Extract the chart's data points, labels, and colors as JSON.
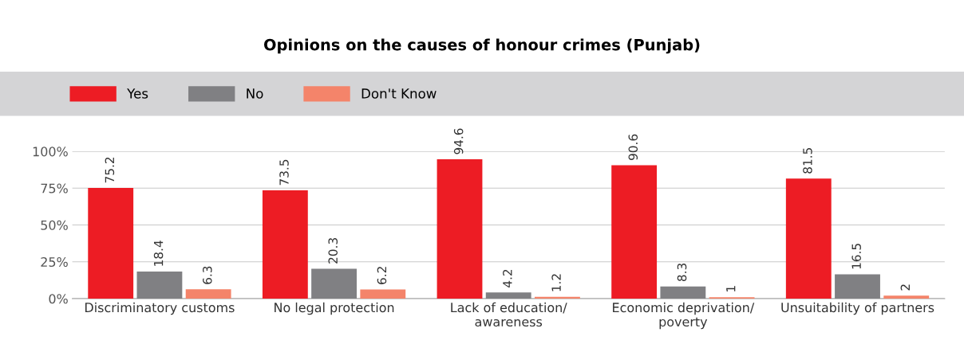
{
  "chart_data": {
    "type": "bar",
    "title": "Opinions on the causes of honour crimes (Punjab)",
    "categories": [
      "Discriminatory customs",
      "No legal protection",
      "Lack of education/ awareness",
      "Economic deprivation/ poverty",
      "Unsuitability of partners"
    ],
    "series": [
      {
        "name": "Yes",
        "color": "#ed1c24",
        "values": [
          75.2,
          73.5,
          94.6,
          90.6,
          81.5
        ]
      },
      {
        "name": "No",
        "color": "#808083",
        "values": [
          18.4,
          20.3,
          4.2,
          8.3,
          16.5
        ]
      },
      {
        "name": "Don't Know",
        "color": "#f4846a",
        "values": [
          6.3,
          6.2,
          1.2,
          1,
          2
        ]
      }
    ],
    "ylim": [
      0,
      100
    ],
    "yticks": [
      {
        "value": 0,
        "label": "0%"
      },
      {
        "value": 25,
        "label": "25%"
      },
      {
        "value": 50,
        "label": "50%"
      },
      {
        "value": 75,
        "label": "75%"
      },
      {
        "value": 100,
        "label": "100%"
      }
    ],
    "grid": "y",
    "legend": "top",
    "data_labels": true
  }
}
